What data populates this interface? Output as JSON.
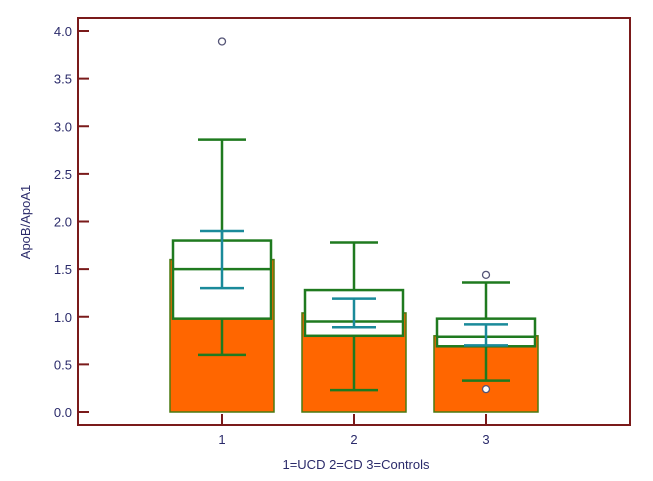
{
  "chart_data": {
    "type": "bar",
    "subtype": "bar with overlaid box-and-whisker",
    "xlabel": "1=UCD 2=CD 3=Controls",
    "ylabel": "ApoB/ApoA1",
    "ylim": [
      -0.15,
      4.2
    ],
    "yticks": [
      "0.0",
      "0.5",
      "1.0",
      "1.5",
      "2.0",
      "2.5",
      "3.0",
      "3.5",
      "4.0"
    ],
    "categories": [
      "1",
      "2",
      "3"
    ],
    "bar_values": [
      1.6,
      1.04,
      0.8
    ],
    "boxes": [
      {
        "q1": 0.98,
        "median": 1.5,
        "q3": 1.8,
        "whisker_low": 0.6,
        "whisker_high": 2.86,
        "ci_low": 1.3,
        "ci_high": 1.9,
        "outliers": [
          3.89
        ]
      },
      {
        "q1": 0.8,
        "median": 0.95,
        "q3": 1.28,
        "whisker_low": 0.23,
        "whisker_high": 1.78,
        "ci_low": 0.89,
        "ci_high": 1.19,
        "outliers": []
      },
      {
        "q1": 0.69,
        "median": 0.79,
        "q3": 0.98,
        "whisker_low": 0.33,
        "whisker_high": 1.36,
        "ci_low": 0.7,
        "ci_high": 0.92,
        "outliers": [
          1.44,
          0.24
        ]
      }
    ],
    "colors": {
      "bar": "#ff6600",
      "bar_edge": "#4a7a10",
      "box": "#1f7a1f",
      "ci": "#1a8a9a",
      "frame": "#7a1a1a",
      "text": "#2a2a6a"
    }
  }
}
